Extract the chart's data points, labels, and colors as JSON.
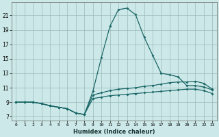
{
  "xlabel": "Humidex (Indice chaleur)",
  "bg_color": "#cce8e8",
  "grid_color": "#99bbbb",
  "line_color": "#1a6666",
  "x": [
    0,
    1,
    2,
    3,
    4,
    5,
    6,
    7,
    8,
    9,
    10,
    11,
    12,
    13,
    14,
    15,
    16,
    17,
    18,
    19,
    20,
    21,
    22,
    23
  ],
  "line_peak": [
    9.0,
    9.0,
    9.0,
    8.8,
    8.5,
    8.3,
    8.1,
    7.5,
    7.3,
    10.5,
    15.2,
    19.5,
    21.8,
    22.0,
    21.1,
    18.0,
    15.5,
    13.0,
    12.8,
    12.5,
    11.3,
    11.3,
    11.1,
    10.7
  ],
  "line_mid": [
    9.0,
    9.0,
    9.0,
    8.8,
    8.5,
    8.3,
    8.1,
    7.5,
    7.3,
    10.0,
    10.3,
    10.6,
    10.8,
    10.9,
    11.0,
    11.2,
    11.3,
    11.5,
    11.7,
    11.8,
    11.8,
    11.9,
    11.6,
    10.8
  ],
  "line_low": [
    9.0,
    9.0,
    9.0,
    8.8,
    8.5,
    8.3,
    8.1,
    7.5,
    7.3,
    9.5,
    9.7,
    9.9,
    10.0,
    10.1,
    10.2,
    10.3,
    10.4,
    10.5,
    10.6,
    10.7,
    10.8,
    10.8,
    10.6,
    10.2
  ],
  "yticks": [
    7,
    9,
    11,
    13,
    15,
    17,
    19,
    21
  ],
  "ylim": [
    6.5,
    22.8
  ],
  "xlim": [
    -0.5,
    23.5
  ],
  "figsize": [
    3.2,
    2.0
  ],
  "dpi": 100
}
